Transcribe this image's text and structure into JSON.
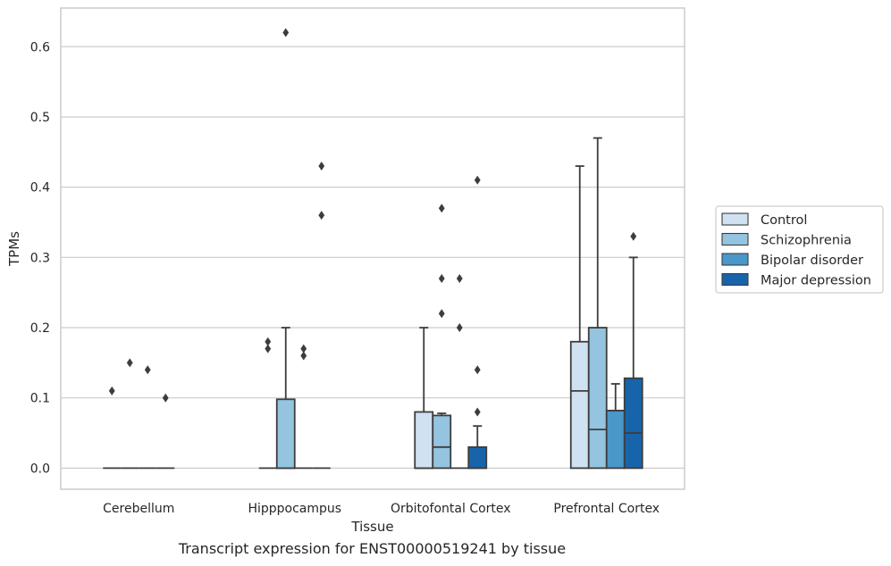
{
  "caption": "Transcript expression for ENST00000519241 by tissue",
  "chart_data": {
    "type": "boxplot",
    "xlabel": "Tissue",
    "ylabel": "TPMs",
    "ylim": [
      -0.03,
      0.655
    ],
    "yticks": [
      0.0,
      0.1,
      0.2,
      0.3,
      0.4,
      0.5,
      0.6
    ],
    "ytick_labels": [
      "0.0",
      "0.1",
      "0.2",
      "0.3",
      "0.4",
      "0.5",
      "0.6"
    ],
    "grid": "horizontal",
    "legend_position": "right",
    "categories": [
      "Cerebellum",
      "Hipppocampus",
      "Orbitofontal Cortex",
      "Prefrontal Cortex"
    ],
    "series": [
      {
        "name": "Control",
        "color": "#d0e1f2",
        "boxes": [
          {
            "q1": 0.0,
            "median": 0.0,
            "q3": 0.0,
            "whislo": 0.0,
            "whishi": 0.0,
            "fliers": [
              0.11
            ]
          },
          {
            "q1": 0.0,
            "median": 0.0,
            "q3": 0.0,
            "whislo": 0.0,
            "whishi": 0.0,
            "fliers": [
              0.17,
              0.18
            ]
          },
          {
            "q1": 0.0,
            "median": 0.0,
            "q3": 0.08,
            "whislo": 0.0,
            "whishi": 0.2,
            "fliers": []
          },
          {
            "q1": 0.0,
            "median": 0.11,
            "q3": 0.18,
            "whislo": 0.0,
            "whishi": 0.43,
            "fliers": []
          }
        ]
      },
      {
        "name": "Schizophrenia",
        "color": "#94c4df",
        "boxes": [
          {
            "q1": 0.0,
            "median": 0.0,
            "q3": 0.0,
            "whislo": 0.0,
            "whishi": 0.0,
            "fliers": [
              0.15
            ]
          },
          {
            "q1": 0.0,
            "median": 0.0,
            "q3": 0.098,
            "whislo": 0.0,
            "whishi": 0.2,
            "fliers": [
              0.62
            ]
          },
          {
            "q1": 0.0,
            "median": 0.03,
            "q3": 0.075,
            "whislo": 0.0,
            "whishi": 0.078,
            "fliers": [
              0.22,
              0.27,
              0.37
            ]
          },
          {
            "q1": 0.0,
            "median": 0.055,
            "q3": 0.2,
            "whislo": 0.0,
            "whishi": 0.47,
            "fliers": []
          }
        ]
      },
      {
        "name": "Bipolar disorder",
        "color": "#4a98c9",
        "boxes": [
          {
            "q1": 0.0,
            "median": 0.0,
            "q3": 0.0,
            "whislo": 0.0,
            "whishi": 0.0,
            "fliers": [
              0.14
            ]
          },
          {
            "q1": 0.0,
            "median": 0.0,
            "q3": 0.0,
            "whislo": 0.0,
            "whishi": 0.0,
            "fliers": [
              0.16,
              0.17
            ]
          },
          {
            "q1": 0.0,
            "median": 0.0,
            "q3": 0.0,
            "whislo": 0.0,
            "whishi": 0.0,
            "fliers": [
              0.2,
              0.27
            ]
          },
          {
            "q1": 0.0,
            "median": 0.082,
            "q3": 0.082,
            "whislo": 0.0,
            "whishi": 0.12,
            "fliers": []
          }
        ]
      },
      {
        "name": "Major depression",
        "color": "#1764ab",
        "boxes": [
          {
            "q1": 0.0,
            "median": 0.0,
            "q3": 0.0,
            "whislo": 0.0,
            "whishi": 0.0,
            "fliers": [
              0.1
            ]
          },
          {
            "q1": 0.0,
            "median": 0.0,
            "q3": 0.0,
            "whislo": 0.0,
            "whishi": 0.0,
            "fliers": [
              0.36,
              0.43
            ]
          },
          {
            "q1": 0.0,
            "median": 0.0,
            "q3": 0.03,
            "whislo": 0.0,
            "whishi": 0.06,
            "fliers": [
              0.08,
              0.14,
              0.41
            ]
          },
          {
            "q1": 0.0,
            "median": 0.05,
            "q3": 0.128,
            "whislo": 0.0,
            "whishi": 0.3,
            "fliers": [
              0.33
            ]
          }
        ]
      }
    ]
  }
}
